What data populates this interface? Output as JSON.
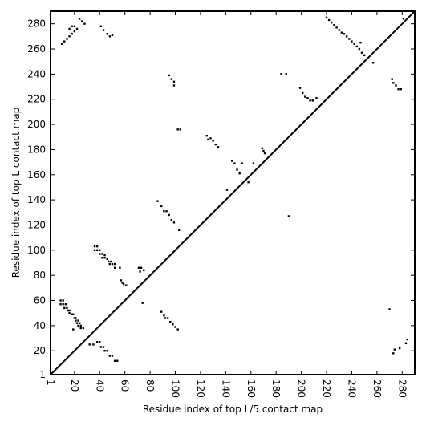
{
  "chart_data": {
    "type": "scatter",
    "title": "",
    "xlabel": "Residue index of top L/5 contact map",
    "ylabel": "Residue index of top L contact map",
    "xlim": [
      1,
      290
    ],
    "ylim": [
      1,
      290
    ],
    "xticks": [
      1,
      20,
      40,
      60,
      80,
      100,
      120,
      140,
      160,
      180,
      200,
      220,
      240,
      260,
      280
    ],
    "yticks": [
      1,
      20,
      40,
      60,
      80,
      100,
      120,
      140,
      160,
      180,
      200,
      220,
      240,
      260,
      280
    ],
    "grid": false,
    "diagonal_line": true,
    "marker_color": "#000000",
    "series": [
      {
        "points": [
          [
            9,
            60
          ],
          [
            11,
            60
          ],
          [
            9,
            57
          ],
          [
            11,
            57
          ],
          [
            13,
            57
          ],
          [
            12,
            54
          ],
          [
            14,
            54
          ],
          [
            15,
            52
          ],
          [
            16,
            52
          ],
          [
            16,
            50
          ],
          [
            18,
            49
          ],
          [
            19,
            49
          ],
          [
            20,
            46
          ],
          [
            21,
            46
          ],
          [
            21,
            44
          ],
          [
            23,
            44
          ],
          [
            22,
            42
          ],
          [
            24,
            42
          ],
          [
            23,
            40
          ],
          [
            25,
            40
          ],
          [
            25,
            38
          ],
          [
            27,
            38
          ],
          [
            19,
            37
          ],
          [
            32,
            25
          ],
          [
            35,
            25
          ],
          [
            38,
            27
          ],
          [
            40,
            27
          ],
          [
            41,
            23
          ],
          [
            43,
            23
          ],
          [
            44,
            20
          ],
          [
            46,
            20
          ],
          [
            48,
            16
          ],
          [
            50,
            16
          ],
          [
            52,
            12
          ],
          [
            54,
            12
          ],
          [
            74,
            58
          ],
          [
            36,
            103
          ],
          [
            38,
            103
          ],
          [
            36,
            100
          ],
          [
            38,
            100
          ],
          [
            40,
            100
          ],
          [
            40,
            97
          ],
          [
            42,
            97
          ],
          [
            44,
            96
          ],
          [
            42,
            94
          ],
          [
            44,
            94
          ],
          [
            46,
            93
          ],
          [
            47,
            91
          ],
          [
            49,
            91
          ],
          [
            48,
            89
          ],
          [
            50,
            89
          ],
          [
            52,
            89
          ],
          [
            52,
            86
          ],
          [
            56,
            86
          ],
          [
            57,
            76
          ],
          [
            58,
            74
          ],
          [
            59,
            73
          ],
          [
            61,
            72
          ],
          [
            71,
            86
          ],
          [
            73,
            86
          ],
          [
            75,
            84
          ],
          [
            72,
            83
          ],
          [
            86,
            139
          ],
          [
            89,
            135
          ],
          [
            91,
            131
          ],
          [
            93,
            131
          ],
          [
            95,
            128
          ],
          [
            97,
            124
          ],
          [
            99,
            122
          ],
          [
            103,
            116
          ],
          [
            89,
            51
          ],
          [
            91,
            48
          ],
          [
            92,
            46
          ],
          [
            94,
            46
          ],
          [
            96,
            43
          ],
          [
            98,
            41
          ],
          [
            100,
            39
          ],
          [
            102,
            37
          ],
          [
            141,
            148
          ],
          [
            158,
            154
          ],
          [
            190,
            127
          ],
          [
            95,
            239
          ],
          [
            97,
            236
          ],
          [
            99,
            234
          ],
          [
            99,
            231
          ],
          [
            102,
            196
          ],
          [
            104,
            196
          ],
          [
            125,
            191
          ],
          [
            126,
            188
          ],
          [
            128,
            189
          ],
          [
            130,
            187
          ],
          [
            132,
            184
          ],
          [
            134,
            182
          ],
          [
            145,
            171
          ],
          [
            147,
            169
          ],
          [
            149,
            164
          ],
          [
            151,
            161
          ],
          [
            153,
            169
          ],
          [
            162,
            169
          ],
          [
            169,
            181
          ],
          [
            170,
            179
          ],
          [
            171,
            177
          ],
          [
            184,
            240
          ],
          [
            188,
            240
          ],
          [
            199,
            229
          ],
          [
            201,
            225
          ],
          [
            203,
            222
          ],
          [
            205,
            221
          ],
          [
            207,
            219
          ],
          [
            209,
            219
          ],
          [
            212,
            221
          ],
          [
            10,
            264
          ],
          [
            12,
            266
          ],
          [
            14,
            268
          ],
          [
            16,
            270
          ],
          [
            18,
            272
          ],
          [
            20,
            274
          ],
          [
            22,
            276
          ],
          [
            24,
            284
          ],
          [
            26,
            282
          ],
          [
            28,
            280
          ],
          [
            16,
            276
          ],
          [
            18,
            278
          ],
          [
            20,
            278
          ],
          [
            41,
            278
          ],
          [
            43,
            275
          ],
          [
            46,
            272
          ],
          [
            48,
            270
          ],
          [
            50,
            271
          ],
          [
            220,
            285
          ],
          [
            222,
            283
          ],
          [
            224,
            281
          ],
          [
            226,
            279
          ],
          [
            228,
            277
          ],
          [
            230,
            275
          ],
          [
            232,
            273
          ],
          [
            234,
            272
          ],
          [
            236,
            270
          ],
          [
            238,
            268
          ],
          [
            240,
            266
          ],
          [
            242,
            264
          ],
          [
            244,
            262
          ],
          [
            246,
            260
          ],
          [
            248,
            257
          ],
          [
            250,
            255
          ],
          [
            247,
            265
          ],
          [
            257,
            249
          ],
          [
            272,
            236
          ],
          [
            273,
            233
          ],
          [
            275,
            231
          ],
          [
            277,
            228
          ],
          [
            279,
            228
          ],
          [
            281,
            284
          ],
          [
            270,
            53
          ],
          [
            273,
            18
          ],
          [
            274,
            21
          ],
          [
            278,
            22
          ],
          [
            283,
            26
          ],
          [
            284,
            29
          ]
        ]
      }
    ]
  }
}
